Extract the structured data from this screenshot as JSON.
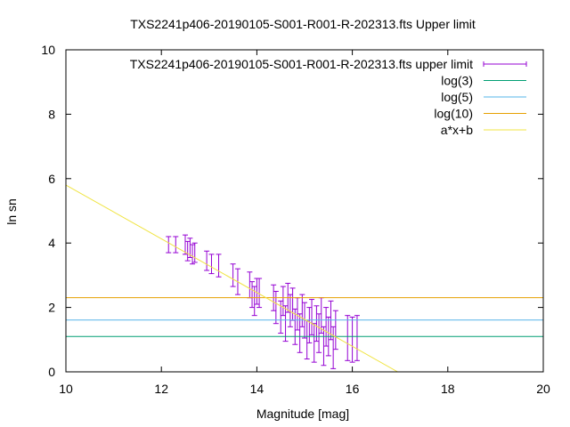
{
  "chart_data": {
    "type": "scatter",
    "title": "TXS2241p406-20190105-S001-R001-R-202313.fts Upper limit",
    "xlabel": "Magnitude [mag]",
    "ylabel": "ln sn",
    "xlim": [
      10,
      20
    ],
    "ylim": [
      0,
      10
    ],
    "xticks": [
      "10",
      "12",
      "14",
      "16",
      "18",
      "20"
    ],
    "yticks": [
      "0",
      "2",
      "4",
      "6",
      "8",
      "10"
    ],
    "grid": false,
    "legend_position": "top-right",
    "series": [
      {
        "name": "TXS2241p406-20190105-S001-R001-R-202313.fts upper limit",
        "kind": "errorbars",
        "color": "#9400d3",
        "points": [
          [
            12.15,
            3.95,
            0.25
          ],
          [
            12.3,
            3.95,
            0.25
          ],
          [
            12.5,
            3.95,
            0.3
          ],
          [
            12.55,
            3.75,
            0.3
          ],
          [
            12.6,
            3.85,
            0.3
          ],
          [
            12.65,
            3.65,
            0.3
          ],
          [
            12.7,
            3.7,
            0.3
          ],
          [
            12.95,
            3.45,
            0.3
          ],
          [
            13.05,
            3.35,
            0.3
          ],
          [
            13.2,
            3.3,
            0.35
          ],
          [
            13.5,
            3.0,
            0.35
          ],
          [
            13.6,
            2.8,
            0.4
          ],
          [
            13.85,
            2.7,
            0.4
          ],
          [
            13.9,
            2.4,
            0.4
          ],
          [
            13.95,
            2.2,
            0.45
          ],
          [
            14.0,
            2.5,
            0.4
          ],
          [
            14.05,
            2.45,
            0.45
          ],
          [
            14.35,
            2.3,
            0.4
          ],
          [
            14.4,
            2.0,
            0.5
          ],
          [
            14.5,
            1.7,
            0.5
          ],
          [
            14.55,
            2.2,
            0.45
          ],
          [
            14.6,
            1.5,
            0.55
          ],
          [
            14.65,
            2.3,
            0.45
          ],
          [
            14.7,
            1.9,
            0.5
          ],
          [
            14.75,
            2.1,
            0.5
          ],
          [
            14.8,
            1.4,
            0.55
          ],
          [
            14.85,
            1.8,
            0.5
          ],
          [
            14.9,
            1.2,
            0.6
          ],
          [
            14.95,
            1.9,
            0.5
          ],
          [
            15.0,
            1.6,
            0.55
          ],
          [
            15.05,
            1.0,
            0.6
          ],
          [
            15.1,
            1.45,
            0.55
          ],
          [
            15.15,
            1.7,
            0.55
          ],
          [
            15.2,
            0.9,
            0.6
          ],
          [
            15.25,
            1.5,
            0.55
          ],
          [
            15.3,
            1.2,
            0.6
          ],
          [
            15.35,
            1.75,
            0.55
          ],
          [
            15.4,
            0.8,
            0.6
          ],
          [
            15.45,
            1.4,
            0.6
          ],
          [
            15.5,
            1.1,
            0.6
          ],
          [
            15.55,
            1.6,
            0.6
          ],
          [
            15.6,
            0.75,
            0.65
          ],
          [
            15.65,
            1.3,
            0.6
          ],
          [
            15.9,
            1.05,
            0.7
          ],
          [
            16.0,
            1.0,
            0.7
          ],
          [
            16.1,
            1.05,
            0.7
          ]
        ]
      },
      {
        "name": "log(3)",
        "kind": "hline",
        "y": 1.0986,
        "color": "#009e73"
      },
      {
        "name": "log(5)",
        "kind": "hline",
        "y": 1.6094,
        "color": "#56b4e9"
      },
      {
        "name": "log(10)",
        "kind": "hline",
        "y": 2.3026,
        "color": "#e69f00"
      },
      {
        "name": "a*x+b",
        "kind": "line",
        "color": "#f0e442",
        "x": [
          10,
          16.95
        ],
        "y": [
          5.8,
          0.0
        ]
      }
    ]
  }
}
